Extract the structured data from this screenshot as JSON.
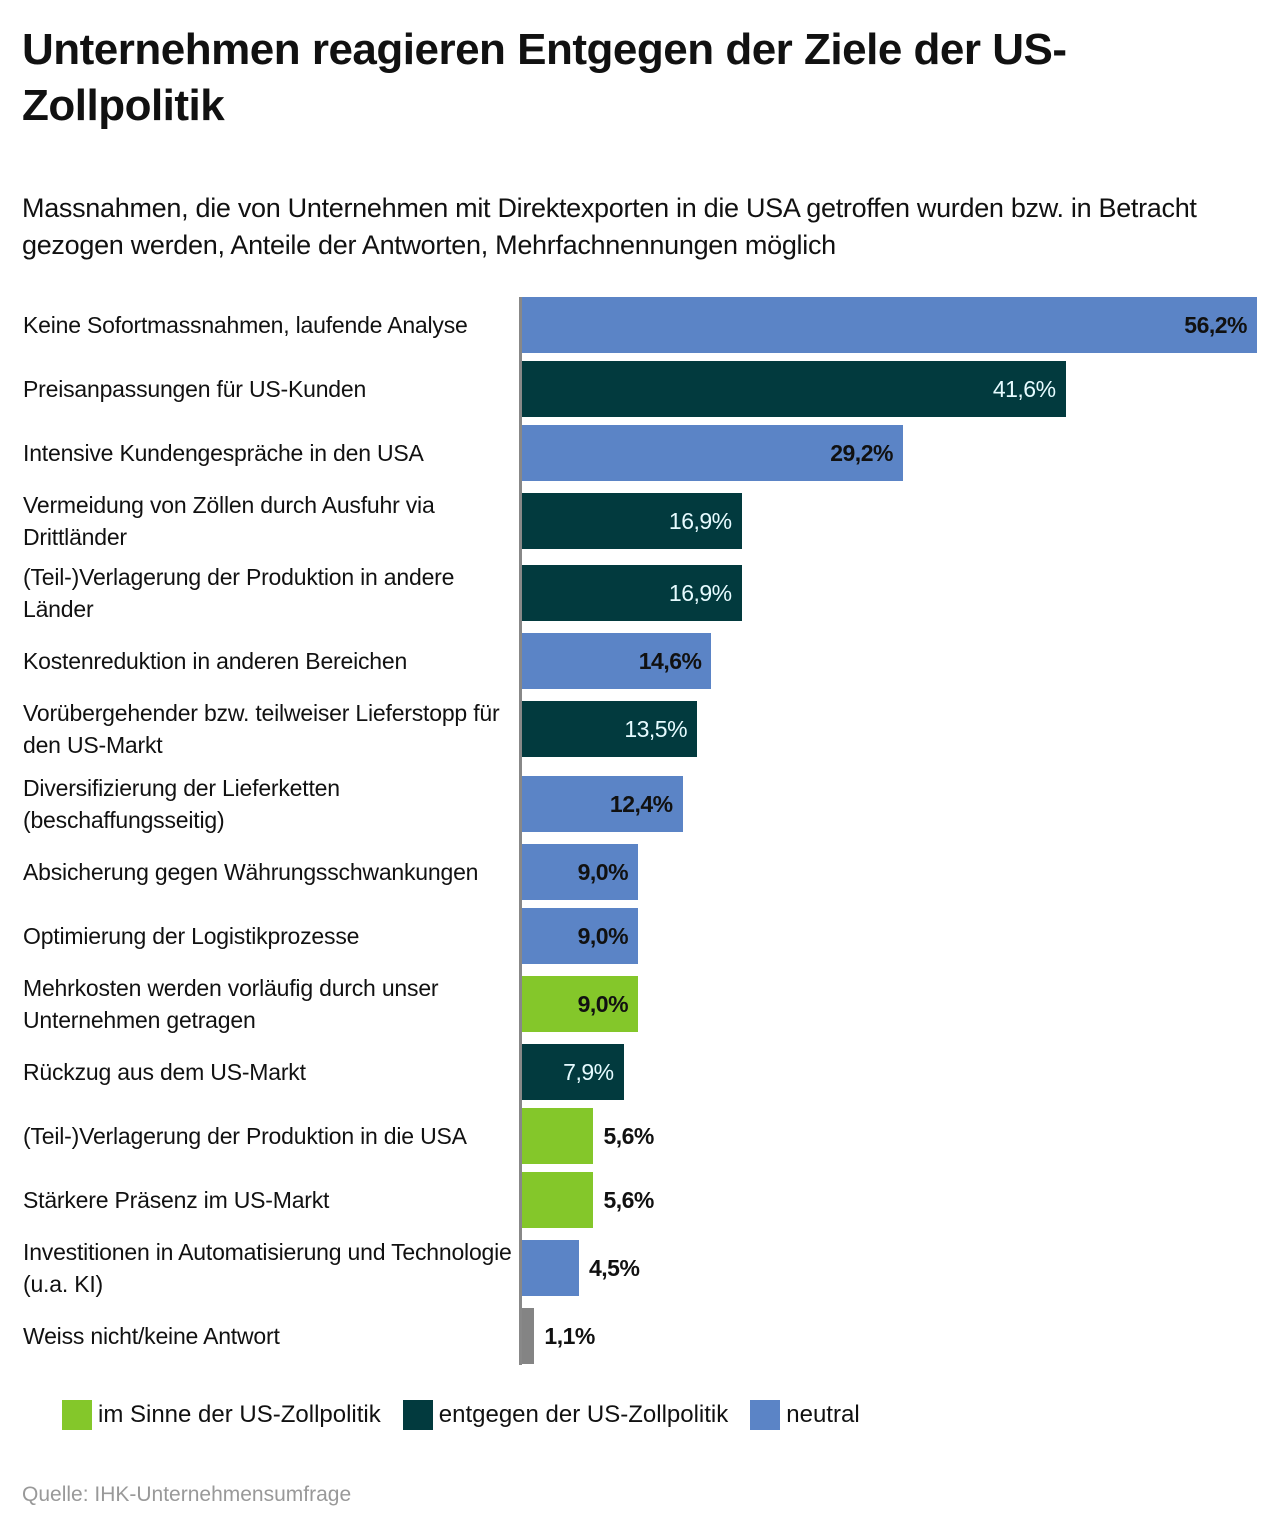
{
  "title": "Unternehmen reagieren Entgegen der Ziele der US-Zollpolitik",
  "subtitle": "Massnahmen, die von Unternehmen mit Direktexporten in die USA getroffen wurden bzw. in Betracht gezogen werden, Anteile der Antworten, Mehrfachnennungen möglich",
  "source": "Quelle: IHK-Unternehmensumfrage",
  "colors": {
    "neutral": "#5b84c6",
    "entgegen": "#023a3e",
    "im_sinne": "#84c72a",
    "unknown": "#848484"
  },
  "legend": [
    {
      "label": "im Sinne der US-Zollpolitik",
      "key": "im_sinne"
    },
    {
      "label": "entgegen der US-Zollpolitik",
      "key": "entgegen"
    },
    {
      "label": "neutral",
      "key": "neutral"
    }
  ],
  "chart_data": {
    "type": "bar",
    "orientation": "horizontal",
    "title": "Unternehmen reagieren Entgegen der Ziele der US-Zollpolitik",
    "xlabel": "",
    "ylabel": "",
    "xlim": [
      0,
      56.2
    ],
    "grid": false,
    "legend_placement": "bottom",
    "categories": [
      "Keine Sofortmassnahmen, laufende Analyse",
      "Preisanpassungen für US-Kunden",
      "Intensive Kundengespräche in den USA",
      "Vermeidung von Zöllen durch Ausfuhr via Drittländer",
      "(Teil-)Verlagerung der Produktion in andere Länder",
      "Kostenreduktion in anderen Bereichen",
      "Vorübergehender bzw. teilweiser Lieferstopp für den US-Markt",
      "Diversifizierung der Lieferketten (beschaffungsseitig)",
      "Absicherung gegen Währungsschwankungen",
      "Optimierung der Logistikprozesse",
      "Mehrkosten werden vorläufig durch unser Unternehmen getragen",
      "Rückzug aus dem US-Markt",
      "(Teil-)Verlagerung der Produktion in die USA",
      "Stärkere Präsenz im US-Markt",
      "Investitionen in Automatisierung und Technologie (u.a. KI)",
      "Weiss nicht/keine Antwort"
    ],
    "values": [
      56.2,
      41.6,
      29.2,
      16.9,
      16.9,
      14.6,
      13.5,
      12.4,
      9.0,
      9.0,
      9.0,
      7.9,
      5.6,
      5.6,
      4.5,
      1.1
    ],
    "labels": [
      "56,2%",
      "41,6%",
      "29,2%",
      "16,9%",
      "16,9%",
      "14,6%",
      "13,5%",
      "12,4%",
      "9,0%",
      "9,0%",
      "9,0%",
      "7,9%",
      "5,6%",
      "5,6%",
      "4,5%",
      "1,1%"
    ],
    "groups": [
      "neutral",
      "entgegen",
      "neutral",
      "entgegen",
      "entgegen",
      "neutral",
      "entgegen",
      "neutral",
      "neutral",
      "neutral",
      "im_sinne",
      "entgegen",
      "im_sinne",
      "im_sinne",
      "neutral",
      "unknown"
    ]
  }
}
